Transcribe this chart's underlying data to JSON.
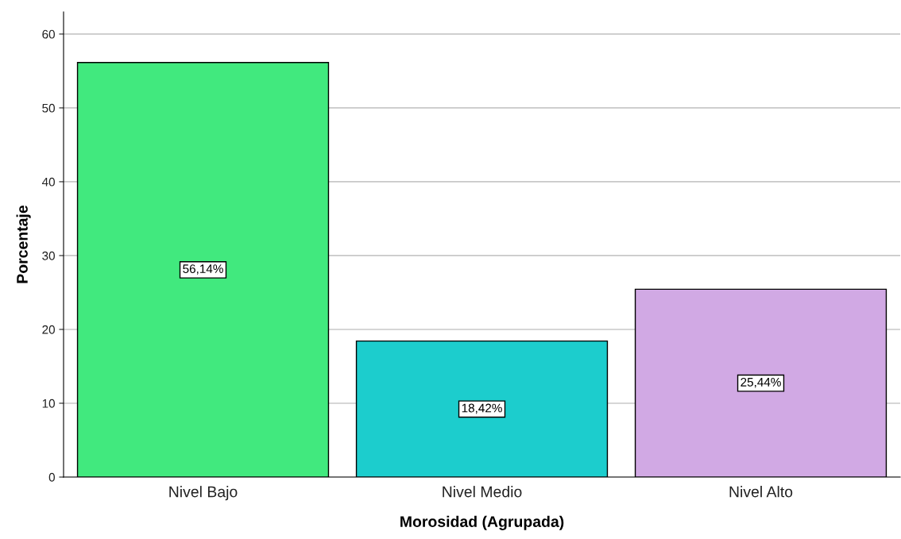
{
  "chart_data": {
    "type": "bar",
    "xlabel": "Morosidad (Agrupada)",
    "ylabel": "Porcentaje",
    "categories": [
      "Nivel Bajo",
      "Nivel Medio",
      "Nivel Alto"
    ],
    "values": [
      56.14,
      18.42,
      25.44
    ],
    "colors": [
      "#41e97e",
      "#1ccdcd",
      "#d1a9e4"
    ],
    "value_labels": [
      "56,14%",
      "18,42%",
      "25,44%"
    ],
    "ylim": [
      0,
      63
    ],
    "yticks": [
      0,
      10,
      20,
      30,
      40,
      50,
      60
    ],
    "grid": "y"
  }
}
